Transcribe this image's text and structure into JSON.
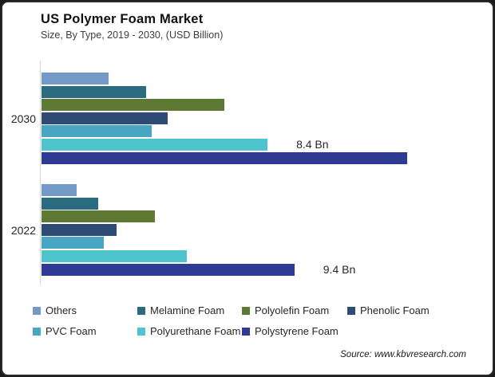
{
  "header": {
    "title": "US Polymer Foam Market",
    "subtitle": "Size, By Type, 2019 - 2030, (USD Billion)"
  },
  "source_note": "Source: www.kbvresearch.com",
  "colors": {
    "card_background": "#ffffff",
    "frame_border": "#2a2a2a",
    "axis_line": "#d6d6d6"
  },
  "chart_data": {
    "type": "bar",
    "orientation": "horizontal",
    "unit": "USD Billion",
    "value_axis_visible": false,
    "legend_position": "bottom",
    "categories": [
      "2030",
      "2022"
    ],
    "series": [
      {
        "name": "Others",
        "color": "#7399C7",
        "values": [
          2.5,
          1.3
        ]
      },
      {
        "name": "Melamine Foam",
        "color": "#2A6B80",
        "values": [
          3.9,
          2.1
        ]
      },
      {
        "name": "Polyolefin Foam",
        "color": "#5E7933",
        "values": [
          6.8,
          4.2
        ]
      },
      {
        "name": "Phenolic Foam",
        "color": "#2D4B73",
        "values": [
          4.7,
          2.8
        ]
      },
      {
        "name": "PVC Foam",
        "color": "#49A6C3",
        "values": [
          4.1,
          2.3
        ]
      },
      {
        "name": "Polyurethane Foam",
        "color": "#4EC4CF",
        "values": [
          8.4,
          5.4
        ]
      },
      {
        "name": "Polystyrene Foam",
        "color": "#2E3A94",
        "values": [
          13.6,
          9.4
        ]
      }
    ],
    "annotations": [
      {
        "category": "2030",
        "series": "Polyurethane Foam",
        "text": "8.4 Bn"
      },
      {
        "category": "2022",
        "series": "Polystyrene Foam",
        "text": "9.4 Bn"
      }
    ]
  }
}
